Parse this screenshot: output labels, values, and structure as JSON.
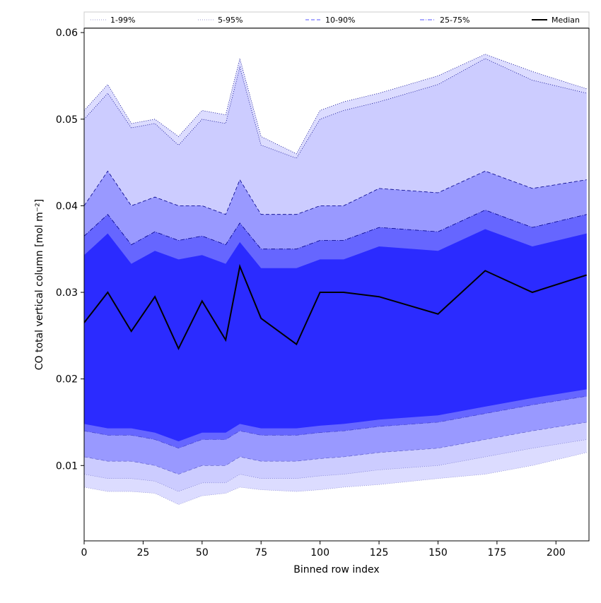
{
  "chart_data": {
    "type": "area",
    "xlabel": "Binned row index",
    "ylabel": "CO total vertical column [mol m⁻²]",
    "xlim": [
      0,
      214
    ],
    "ylim": [
      0.0013,
      0.0605
    ],
    "xticks": [
      0,
      25,
      50,
      75,
      100,
      125,
      150,
      175,
      200
    ],
    "xtick_labels": [
      "0",
      "25",
      "50",
      "75",
      "100",
      "125",
      "150",
      "175",
      "200"
    ],
    "yticks": [
      0.01,
      0.02,
      0.03,
      0.04,
      0.05,
      0.06
    ],
    "ytick_labels": [
      "0.01",
      "0.02",
      "0.03",
      "0.04",
      "0.05",
      "0.06"
    ],
    "grid": false,
    "legend_position": "top (above plot, horizontal)",
    "x": [
      0,
      10,
      20,
      30,
      40,
      50,
      60,
      66,
      75,
      90,
      100,
      110,
      125,
      150,
      170,
      190,
      213
    ],
    "series": [
      {
        "name": "1-99%",
        "color": "#dcdcff",
        "line_style": "dotted",
        "lower": [
          0.0075,
          0.007,
          0.007,
          0.0068,
          0.0055,
          0.0065,
          0.0068,
          0.0075,
          0.0072,
          0.007,
          0.0072,
          0.0075,
          0.0078,
          0.0085,
          0.009,
          0.01,
          0.0115
        ],
        "upper": [
          0.051,
          0.054,
          0.0495,
          0.05,
          0.048,
          0.051,
          0.0505,
          0.057,
          0.048,
          0.046,
          0.051,
          0.052,
          0.053,
          0.055,
          0.0575,
          0.0555,
          0.0535
        ]
      },
      {
        "name": "5-95%",
        "color": "#ccccff",
        "line_style": "dotted",
        "lower": [
          0.009,
          0.0085,
          0.0085,
          0.0082,
          0.007,
          0.008,
          0.008,
          0.009,
          0.0085,
          0.0085,
          0.0088,
          0.009,
          0.0095,
          0.01,
          0.011,
          0.012,
          0.013
        ],
        "upper": [
          0.05,
          0.053,
          0.049,
          0.0495,
          0.047,
          0.05,
          0.0495,
          0.056,
          0.047,
          0.0455,
          0.05,
          0.051,
          0.052,
          0.054,
          0.057,
          0.0545,
          0.053
        ]
      },
      {
        "name": "10-90%",
        "color": "#9999ff",
        "line_style": "dashed",
        "lower": [
          0.011,
          0.0105,
          0.0105,
          0.01,
          0.009,
          0.01,
          0.01,
          0.011,
          0.0105,
          0.0105,
          0.0108,
          0.011,
          0.0115,
          0.012,
          0.013,
          0.014,
          0.015
        ],
        "upper": [
          0.04,
          0.044,
          0.04,
          0.041,
          0.04,
          0.04,
          0.039,
          0.043,
          0.039,
          0.039,
          0.04,
          0.04,
          0.042,
          0.0415,
          0.044,
          0.042,
          0.043
        ]
      },
      {
        "name": "25-75%",
        "color": "#6666ff",
        "line_style": "dashdot",
        "lower": [
          0.014,
          0.0135,
          0.0135,
          0.013,
          0.012,
          0.013,
          0.013,
          0.014,
          0.0135,
          0.0135,
          0.0138,
          0.014,
          0.0145,
          0.015,
          0.016,
          0.017,
          0.018
        ],
        "upper": [
          0.0365,
          0.039,
          0.0355,
          0.037,
          0.036,
          0.0365,
          0.0355,
          0.038,
          0.035,
          0.035,
          0.036,
          0.036,
          0.0375,
          0.037,
          0.0395,
          0.0375,
          0.039
        ]
      },
      {
        "name": "Median",
        "color": "#000000",
        "line_style": "solid",
        "values": [
          0.0265,
          0.03,
          0.0255,
          0.0295,
          0.0235,
          0.029,
          0.0245,
          0.033,
          0.027,
          0.024,
          0.03,
          0.03,
          0.0295,
          0.0275,
          0.0325,
          0.03,
          0.032
        ]
      }
    ],
    "fill_colors": {
      "band_1_99": "#dcdcff",
      "band_5_95": "#ccccff",
      "band_10_90": "#9999ff",
      "band_25_75": "#6666ff",
      "core": "#2b2bff",
      "edge_line": "#00008b"
    }
  }
}
